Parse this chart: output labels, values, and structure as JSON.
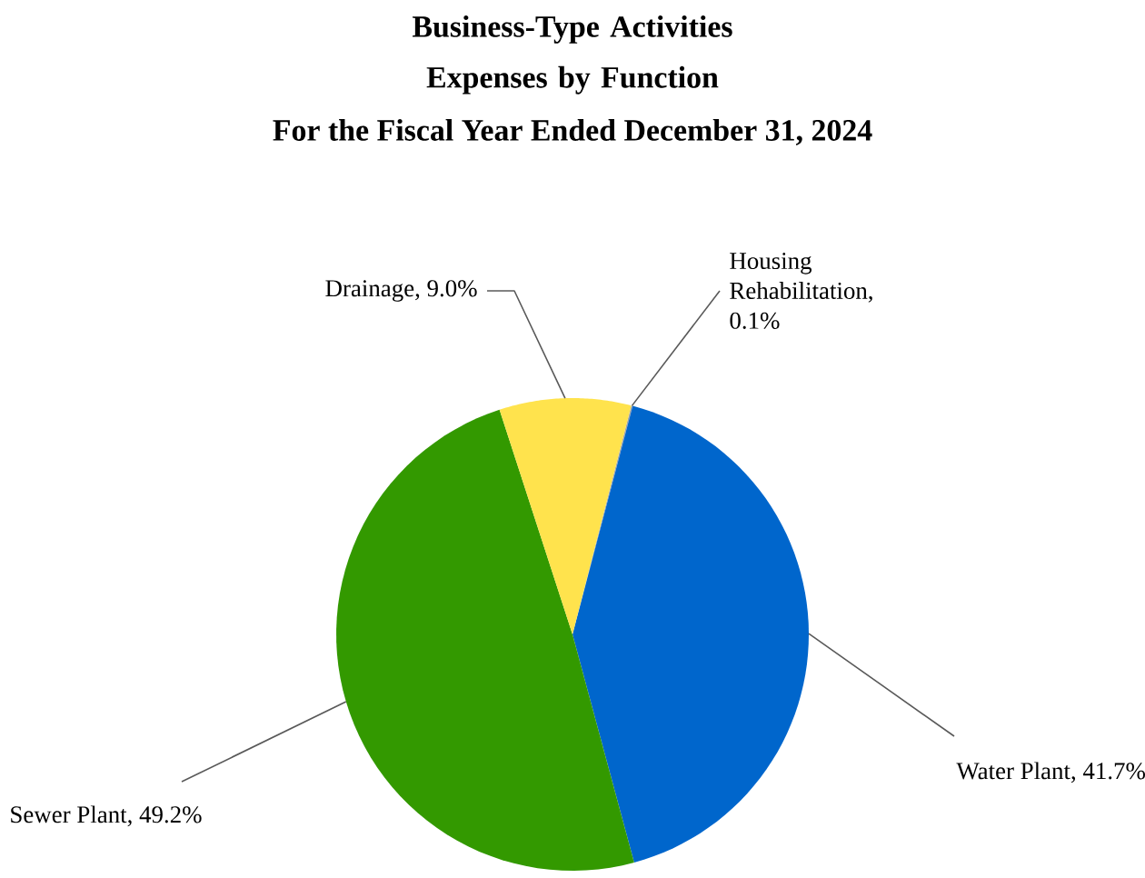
{
  "chart_data": {
    "type": "pie",
    "title": "Business-Type Activities Expenses by Function",
    "subtitle": "For the Fiscal Year Ended December 31, 2024",
    "categories": [
      "Housing Rehabilitation",
      "Water Plant",
      "Sewer Plant",
      "Drainage"
    ],
    "values": [
      0.1,
      41.7,
      49.2,
      9.0
    ],
    "colors": [
      "#a5a5a5",
      "#0066cc",
      "#339900",
      "#ffe34d"
    ],
    "value_labels": [
      ", 0.1%",
      ", 41.7%",
      ", 49.2%",
      ", 9.0%"
    ]
  }
}
